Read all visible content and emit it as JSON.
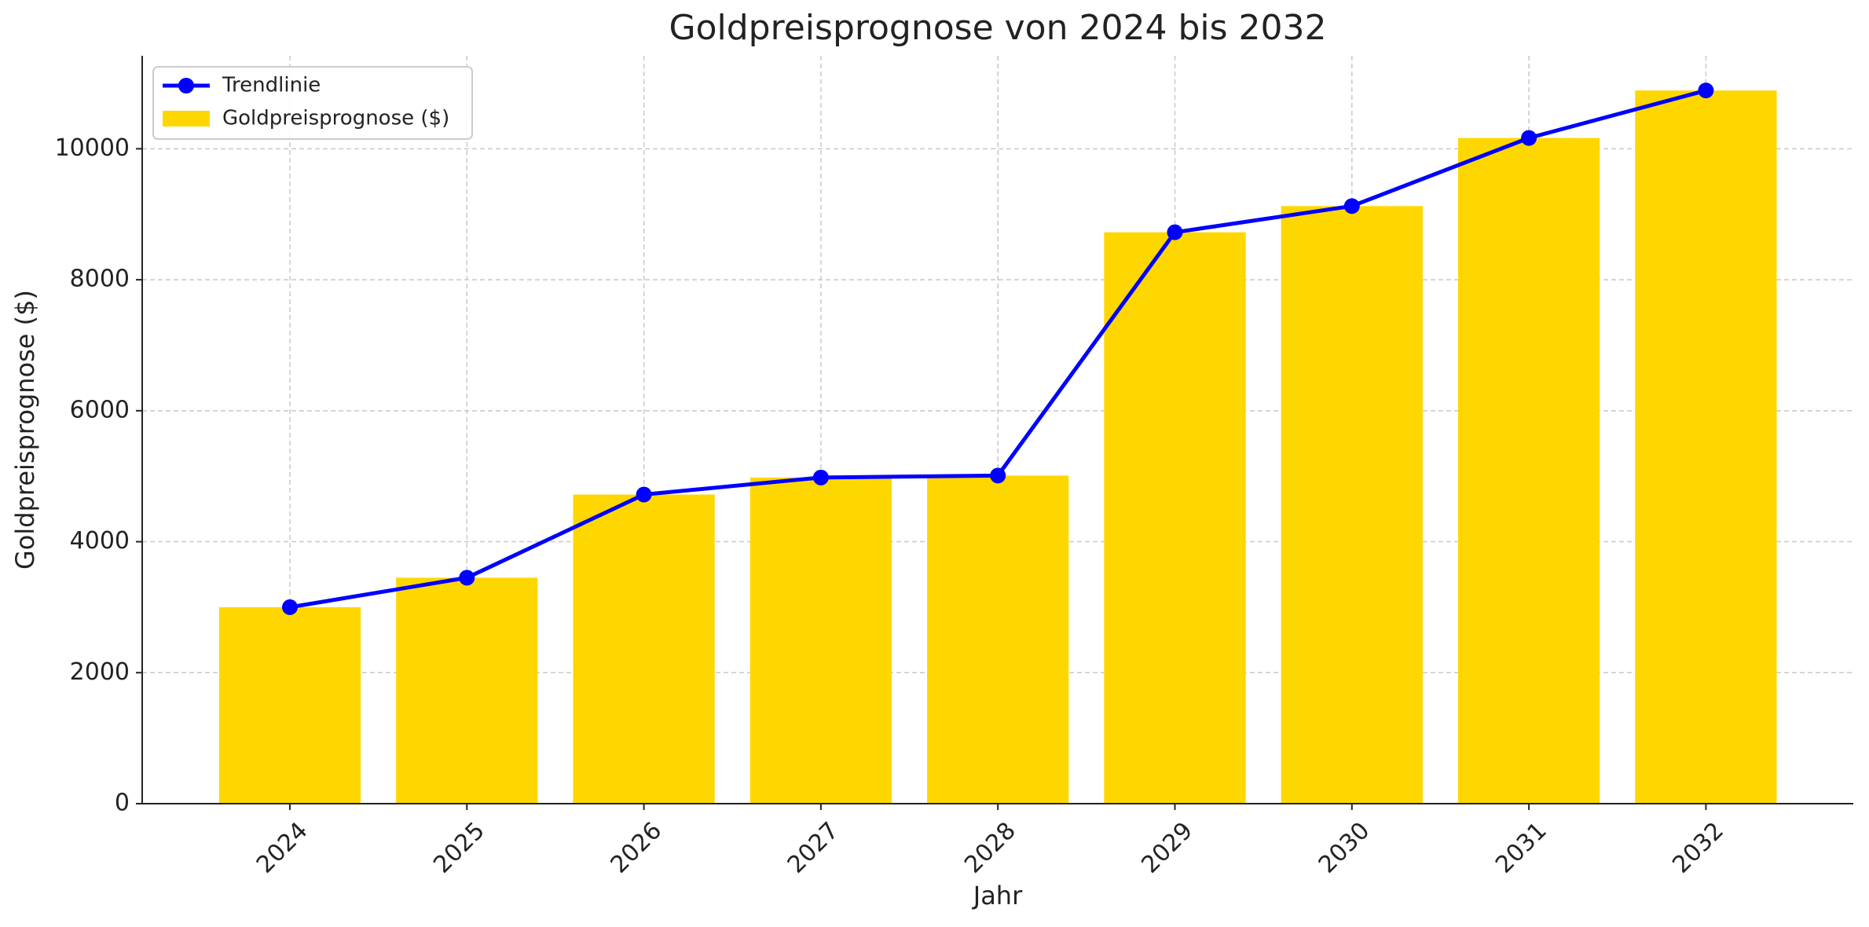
{
  "chart_data": {
    "type": "bar",
    "title": "Goldpreisprognose von 2024 bis 2032",
    "x_label": "Jahr",
    "y_label": "Goldpreisprognose ($)",
    "categories": [
      "2024",
      "2025",
      "2026",
      "2027",
      "2028",
      "2029",
      "2030",
      "2031",
      "2032"
    ],
    "series": [
      {
        "name": "Trendlinie",
        "type": "line",
        "color": "#0000ff",
        "values": [
          3000,
          3450,
          4720,
          4980,
          5010,
          8725,
          9125,
          10165,
          10890
        ]
      },
      {
        "name": "Goldpreisprognose ($)",
        "type": "bar",
        "color": "#ffd700",
        "values": [
          3000,
          3450,
          4720,
          4980,
          5010,
          8725,
          9125,
          10165,
          10890
        ]
      }
    ],
    "ylim": [
      0,
      11420
    ],
    "yticks": [
      0,
      2000,
      4000,
      6000,
      8000,
      10000
    ],
    "grid": true,
    "legend": "upper left"
  }
}
